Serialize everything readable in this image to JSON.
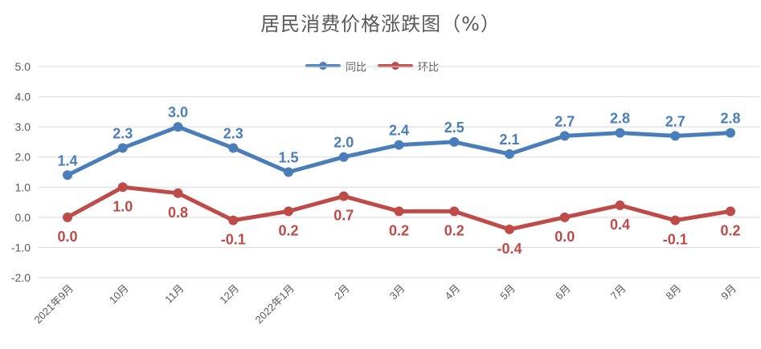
{
  "chart_data": {
    "type": "line",
    "title": "居民消费价格涨跌图（%）",
    "categories": [
      "2021年9月",
      "10月",
      "11月",
      "12月",
      "2022年1月",
      "2月",
      "3月",
      "4月",
      "5月",
      "6月",
      "7月",
      "8月",
      "9月"
    ],
    "series": [
      {
        "name": "同比",
        "color": "#4A7EBB",
        "values": [
          1.4,
          2.3,
          3.0,
          2.3,
          1.5,
          2.0,
          2.4,
          2.5,
          2.1,
          2.7,
          2.8,
          2.7,
          2.8
        ]
      },
      {
        "name": "环比",
        "color": "#BE4B48",
        "values": [
          0.0,
          1.0,
          0.8,
          -0.1,
          0.2,
          0.7,
          0.2,
          0.2,
          -0.4,
          0.0,
          0.4,
          -0.1,
          0.2
        ]
      }
    ],
    "ylim": [
      -2.0,
      5.0
    ],
    "yticks": [
      5.0,
      4.0,
      3.0,
      2.0,
      1.0,
      0.0,
      -1.0,
      -2.0
    ],
    "grid": true,
    "legend_position": "top-center"
  }
}
